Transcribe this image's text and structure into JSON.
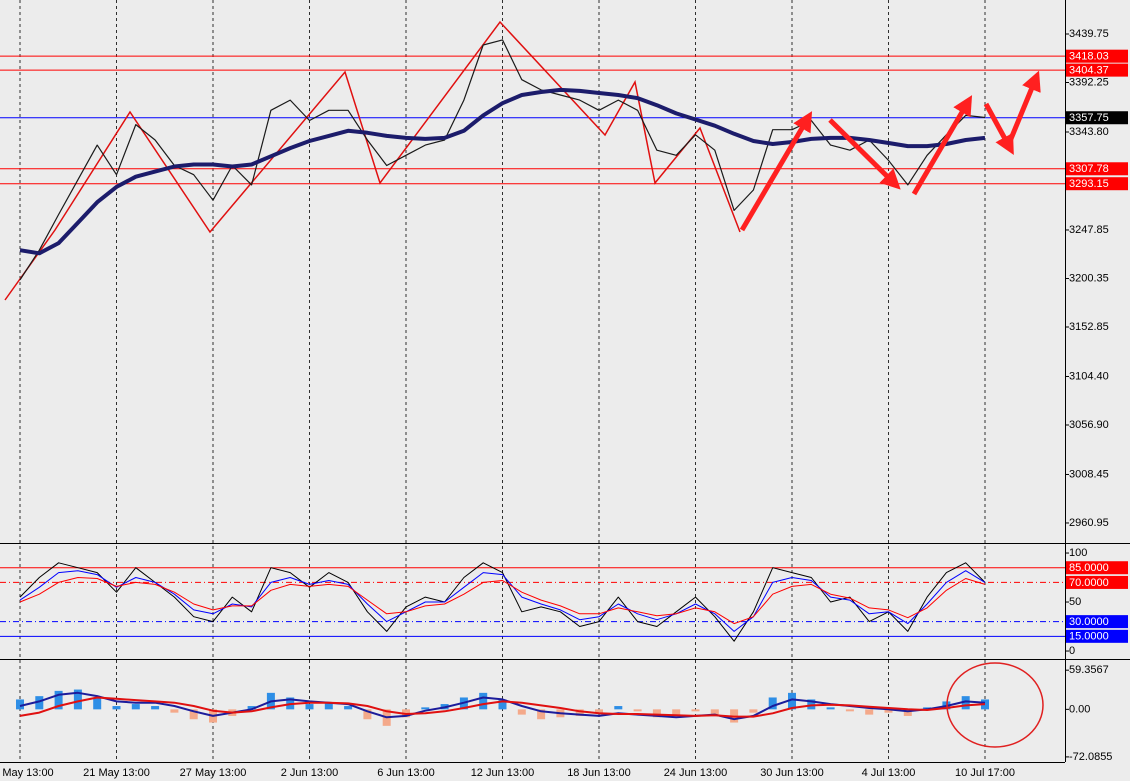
{
  "chart_data": [
    {
      "type": "line",
      "categories": [
        "May 13:00",
        null,
        null,
        null,
        null,
        "21 May 13:00",
        null,
        null,
        null,
        null,
        "27 May 13:00",
        null,
        null,
        null,
        null,
        "2 Jun 13:00",
        null,
        null,
        null,
        null,
        "6 Jun 13:00",
        null,
        null,
        null,
        null,
        "12 Jun 13:00",
        null,
        null,
        null,
        null,
        "18 Jun 13:00",
        null,
        null,
        null,
        null,
        "24 Jun 13:00",
        null,
        null,
        null,
        null,
        "30 Jun 13:00",
        null,
        null,
        null,
        null,
        "4 Jul 13:00",
        null,
        null,
        null,
        null,
        "10 Jul 17:00"
      ],
      "ylim": [
        2943.3,
        3473.04
      ],
      "yticks": [
        3439.75,
        3392.25,
        {
          "value": 3343.8,
          "label": "3343.80"
        },
        3247.85,
        3200.35,
        3152.85,
        {
          "value": 3104.4,
          "label": "3104.40"
        },
        {
          "value": 3056.9,
          "label": "3056.90"
        },
        3008.45,
        2960.95
      ],
      "levels": [
        {
          "value": 3418.03,
          "color": "#ff0000",
          "label_color": "#ff0000"
        },
        {
          "value": 3404.37,
          "color": "#ff0000",
          "label_color": "#ff0000"
        },
        {
          "value": 3357.75,
          "color": "#0000ff",
          "label_color": "#000000"
        },
        {
          "value": 3307.78,
          "color": "#ff0000",
          "label_color": "#ff0000"
        },
        {
          "value": 3293.15,
          "color": "#ff0000",
          "label_color": "#ff0000"
        }
      ],
      "grid": true,
      "series": [
        {
          "color": "#1a1a1a",
          "line_width": 1.2,
          "values": [
            3199,
            3228,
            3263,
            3297,
            3331,
            3302,
            3351,
            3336,
            3311,
            3302,
            3277,
            3311,
            3292,
            3365,
            3375,
            3355,
            3365,
            3365,
            3336,
            3311,
            3321,
            3331,
            3336,
            3375,
            3429,
            3434,
            3395,
            3385,
            3380,
            3375,
            3365,
            3375,
            3365,
            3326,
            3321,
            3341,
            3326,
            3267,
            3287,
            3346,
            3346,
            3355,
            3331,
            3326,
            3336,
            3316,
            3292,
            3321,
            3341,
            3360,
            3358
          ]
        },
        {
          "color": "#1c1c6b",
          "line_width": 4,
          "values": [
            3228,
            3225,
            3235,
            3255,
            3275,
            3290,
            3300,
            3305,
            3310,
            3312,
            3312,
            3310,
            3312,
            3320,
            3328,
            3335,
            3340,
            3345,
            3343,
            3340,
            3338,
            3337,
            3338,
            3345,
            3360,
            3372,
            3380,
            3383,
            3385,
            3384,
            3382,
            3380,
            3377,
            3370,
            3362,
            3356,
            3350,
            3342,
            3335,
            3332,
            3334,
            3337,
            3338,
            3338,
            3336,
            3333,
            3330,
            3330,
            3332,
            3336,
            3338
          ]
        }
      ]
    },
    {
      "type": "line",
      "ylim": [
        -6.1,
        108.2
      ],
      "yticks": [
        100,
        50,
        0
      ],
      "levels": [
        {
          "value": 85,
          "label": "85.0000",
          "color": "#ff0000",
          "label_color": "#ff0000"
        },
        {
          "value": 70,
          "label": "70.0000",
          "color": "#ff0000",
          "label_color": "#ff0000",
          "dash": true
        },
        {
          "value": 30,
          "label": "30.0000",
          "color": "#0000ff",
          "label_color": "#0000ff",
          "dash": true
        },
        {
          "value": 15,
          "label": "15.0000",
          "color": "#0000ff",
          "label_color": "#0000ff"
        }
      ],
      "series": [
        {
          "color": "#000000",
          "line_width": 1,
          "values": [
            55,
            75,
            90,
            85,
            80,
            60,
            85,
            70,
            55,
            35,
            30,
            55,
            40,
            85,
            80,
            65,
            80,
            70,
            40,
            20,
            45,
            55,
            50,
            75,
            90,
            80,
            40,
            45,
            40,
            25,
            30,
            55,
            30,
            25,
            40,
            55,
            35,
            10,
            40,
            85,
            80,
            75,
            50,
            55,
            30,
            40,
            20,
            55,
            80,
            90,
            70
          ]
        },
        {
          "color": "#0000ff",
          "line_width": 1,
          "values": [
            52,
            65,
            80,
            82,
            78,
            65,
            75,
            70,
            58,
            42,
            38,
            48,
            45,
            70,
            75,
            68,
            72,
            68,
            48,
            30,
            40,
            50,
            50,
            65,
            80,
            78,
            55,
            48,
            42,
            32,
            35,
            48,
            38,
            32,
            38,
            48,
            38,
            20,
            35,
            70,
            75,
            72,
            55,
            52,
            38,
            40,
            28,
            48,
            70,
            82,
            70
          ]
        },
        {
          "color": "#ff0000",
          "line_width": 1,
          "values": [
            50,
            58,
            70,
            75,
            74,
            66,
            70,
            68,
            60,
            48,
            42,
            46,
            46,
            62,
            68,
            66,
            68,
            66,
            52,
            38,
            40,
            46,
            48,
            58,
            70,
            72,
            60,
            52,
            46,
            38,
            38,
            44,
            40,
            36,
            38,
            44,
            40,
            28,
            35,
            58,
            66,
            68,
            58,
            54,
            44,
            42,
            34,
            44,
            62,
            74,
            68
          ]
        }
      ]
    },
    {
      "type": "bar",
      "ylim": [
        -79.8,
        73.27
      ],
      "yticks": [
        59.3567,
        {
          "value": 0,
          "label": "0.00"
        },
        -72.0855
      ],
      "color": "#2e8ee6",
      "negative_color": "#f4a98a",
      "values": [
        15,
        20,
        28,
        30,
        18,
        5,
        8,
        5,
        -5,
        -15,
        -20,
        -10,
        5,
        25,
        18,
        8,
        10,
        5,
        -15,
        -25,
        -12,
        3,
        8,
        18,
        25,
        15,
        -8,
        -15,
        -12,
        -10,
        -5,
        5,
        -3,
        -12,
        -8,
        -3,
        -8,
        -20,
        -5,
        18,
        25,
        15,
        3,
        -3,
        -8,
        -5,
        -10,
        3,
        12,
        20,
        15
      ],
      "series": [
        {
          "color": "#1c1c9b",
          "line_width": 2,
          "values": [
            5,
            12,
            22,
            25,
            20,
            12,
            10,
            10,
            5,
            -3,
            -10,
            -5,
            0,
            12,
            15,
            12,
            10,
            8,
            -3,
            -12,
            -10,
            -2,
            3,
            10,
            18,
            15,
            5,
            -3,
            -6,
            -8,
            -10,
            -6,
            -8,
            -10,
            -12,
            -10,
            -8,
            -15,
            -10,
            5,
            15,
            12,
            8,
            5,
            2,
            0,
            -3,
            0,
            5,
            12,
            10
          ]
        },
        {
          "color": "#e01010",
          "line_width": 2,
          "values": [
            -10,
            -5,
            5,
            12,
            18,
            16,
            14,
            12,
            10,
            5,
            -2,
            -5,
            -3,
            3,
            8,
            10,
            10,
            9,
            5,
            -3,
            -7,
            -6,
            -3,
            2,
            8,
            12,
            10,
            6,
            2,
            -3,
            -6,
            -7,
            -7,
            -8,
            -9,
            -10,
            -9,
            -11,
            -11,
            -6,
            2,
            6,
            7,
            6,
            4,
            2,
            0,
            -1,
            2,
            6,
            8
          ]
        }
      ]
    }
  ]
}
